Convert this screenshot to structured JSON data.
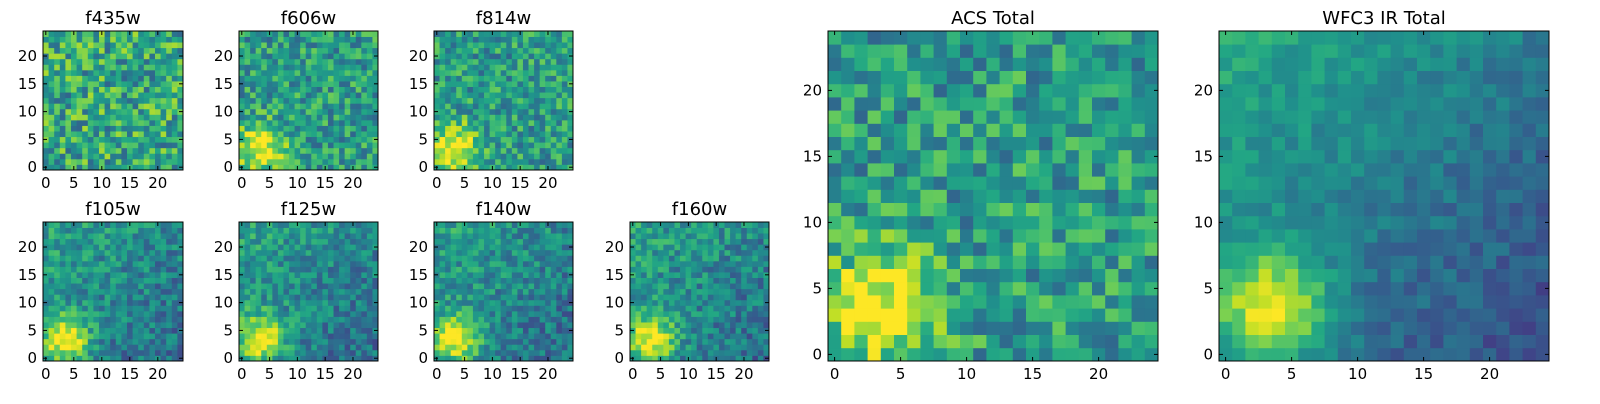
{
  "chart_data": {
    "type": "heatmap",
    "colormap": "viridis",
    "panels": [
      {
        "title": "f435w",
        "xticks": [
          0,
          5,
          10,
          15,
          20
        ],
        "yticks": [
          0,
          5,
          10,
          15,
          20
        ],
        "xlim": [
          0,
          25
        ],
        "ylim": [
          0,
          25
        ],
        "pattern": "noise_high",
        "seed": 11
      },
      {
        "title": "f606w",
        "xticks": [
          0,
          5,
          10,
          15,
          20
        ],
        "yticks": [
          0,
          5,
          10,
          15,
          20
        ],
        "xlim": [
          0,
          25
        ],
        "ylim": [
          0,
          25
        ],
        "pattern": "source_lower_left",
        "seed": 22
      },
      {
        "title": "f814w",
        "xticks": [
          0,
          5,
          10,
          15,
          20
        ],
        "yticks": [
          0,
          5,
          10,
          15,
          20
        ],
        "xlim": [
          0,
          25
        ],
        "ylim": [
          0,
          25
        ],
        "pattern": "source_lower_left",
        "seed": 33
      },
      {
        "title": "f105w",
        "xticks": [
          0,
          5,
          10,
          15,
          20
        ],
        "yticks": [
          0,
          5,
          10,
          15,
          20
        ],
        "xlim": [
          0,
          25
        ],
        "ylim": [
          0,
          25
        ],
        "pattern": "source_lower_left_ir",
        "seed": 44
      },
      {
        "title": "f125w",
        "xticks": [
          0,
          5,
          10,
          15,
          20
        ],
        "yticks": [
          0,
          5,
          10,
          15,
          20
        ],
        "xlim": [
          0,
          25
        ],
        "ylim": [
          0,
          25
        ],
        "pattern": "source_lower_left_ir",
        "seed": 55
      },
      {
        "title": "f140w",
        "xticks": [
          0,
          5,
          10,
          15,
          20
        ],
        "yticks": [
          0,
          5,
          10,
          15,
          20
        ],
        "xlim": [
          0,
          25
        ],
        "ylim": [
          0,
          25
        ],
        "pattern": "source_lower_left_ir",
        "seed": 66
      },
      {
        "title": "f160w",
        "xticks": [
          0,
          5,
          10,
          15,
          20
        ],
        "yticks": [
          0,
          5,
          10,
          15,
          20
        ],
        "xlim": [
          0,
          25
        ],
        "ylim": [
          0,
          25
        ],
        "pattern": "source_lower_left_ir",
        "seed": 77
      },
      {
        "title": "ACS Total",
        "xticks": [
          0,
          5,
          10,
          15,
          20
        ],
        "yticks": [
          0,
          5,
          10,
          15,
          20
        ],
        "xlim": [
          0,
          25
        ],
        "ylim": [
          0,
          25
        ],
        "pattern": "source_lower_left",
        "seed": 88
      },
      {
        "title": "WFC3 IR Total",
        "xticks": [
          0,
          5,
          10,
          15,
          20
        ],
        "yticks": [
          0,
          5,
          10,
          15,
          20
        ],
        "xlim": [
          0,
          25
        ],
        "ylim": [
          0,
          25
        ],
        "pattern": "source_lower_left_smooth",
        "seed": 99
      }
    ]
  }
}
